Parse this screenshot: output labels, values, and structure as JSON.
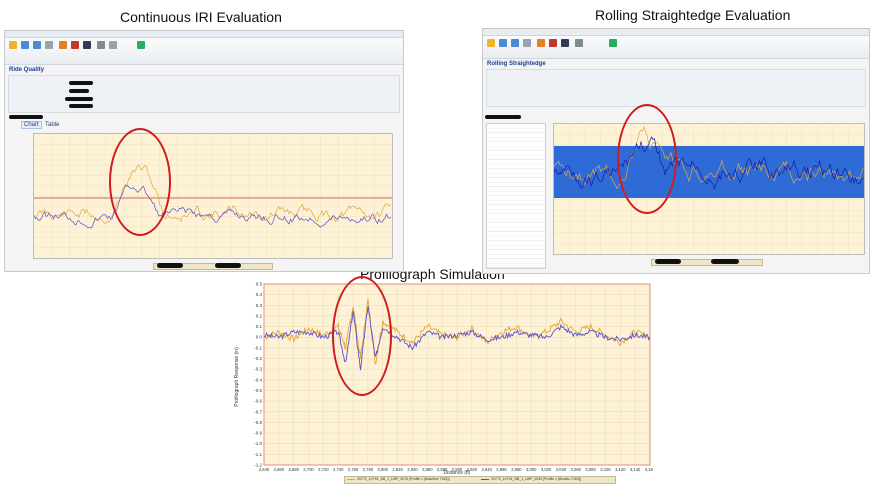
{
  "captions": {
    "iri": "Continuous IRI Evaluation",
    "rse": "Rolling Straightedge Evaluation",
    "profilograph": "Profilograph Simulation"
  },
  "iri_panel": {
    "section_title": "Ride Quality",
    "tabs": [
      "Chart",
      "Table"
    ]
  },
  "rse_panel": {
    "section_title": "Rolling Straightedge"
  },
  "profilograph": {
    "y_axis_label": "Profilograph Response (in)",
    "x_axis_label": "Distance (ft)",
    "legend": [
      {
        "name": "20772_10+51_NB_1_LWP_0070 [Profile 1 (Baseline 7163)]",
        "color": "#e0a83c"
      },
      {
        "name": "20772_10+51_NB_1_LWP_0042 [Profile 1 (Bcratio 7163)]",
        "color": "#5b4fcf"
      }
    ]
  },
  "colors": {
    "orange_series": "#e0a83c",
    "blue_series": "#5b4fcf",
    "highlight_ellipse": "#d01c1c",
    "plot_background": "#fdf1d6",
    "threshold_line": "#c0392b",
    "rse_band": "#2e6bd6"
  },
  "chart_data": [
    {
      "type": "line",
      "title": "Profilograph Simulation",
      "xlabel": "Distance (ft)",
      "ylabel": "Profilograph Response (in)",
      "xlim": [
        2640,
        3160
      ],
      "ylim": [
        -1.2,
        0.5
      ],
      "x_ticks": [
        "2,640",
        "2,660",
        "2,680",
        "2,700",
        "2,720",
        "2,740",
        "2,760",
        "2,780",
        "2,800",
        "2,820",
        "2,840",
        "2,860",
        "2,880",
        "2,900",
        "2,920",
        "2,940",
        "2,960",
        "2,980",
        "3,000",
        "3,020",
        "3,040",
        "3,060",
        "3,080",
        "3,100",
        "3,120",
        "3,140",
        "3,160"
      ],
      "y_ticks": [
        "0.5",
        "0.4",
        "0.3",
        "0.2",
        "0.1",
        "0.0",
        "-0.1",
        "-0.2",
        "-0.3",
        "-0.4",
        "-0.5",
        "-0.6",
        "-0.7",
        "-0.8",
        "-0.9",
        "-1.0",
        "-1.1",
        "-1.2"
      ],
      "series": [
        {
          "name": "20772_10+51_NB_1_LWP_0070 [Profile 1 (Baseline 7163)]",
          "x": [
            2640,
            2660,
            2680,
            2700,
            2720,
            2740,
            2750,
            2760,
            2770,
            2780,
            2790,
            2800,
            2820,
            2840,
            2860,
            2880,
            2900,
            2920,
            2940,
            2960,
            2980,
            3000,
            3020,
            3040,
            3060,
            3080,
            3100,
            3120,
            3140,
            3160
          ],
          "y": [
            0.0,
            0.05,
            -0.02,
            0.08,
            0.02,
            0.1,
            -0.1,
            0.3,
            -0.2,
            0.35,
            -0.25,
            0.15,
            0.05,
            -0.05,
            0.1,
            0.02,
            0.0,
            0.08,
            -0.05,
            0.05,
            0.1,
            0.0,
            0.05,
            0.15,
            0.05,
            0.1,
            0.02,
            -0.05,
            0.05,
            0.0
          ]
        },
        {
          "name": "20772_10+51_NB_1_LWP_0042 [Profile 1 (Bcratio 7163)]",
          "x": [
            2640,
            2660,
            2680,
            2700,
            2720,
            2740,
            2750,
            2760,
            2770,
            2780,
            2790,
            2800,
            2820,
            2840,
            2860,
            2880,
            2900,
            2920,
            2940,
            2960,
            2980,
            3000,
            3020,
            3040,
            3060,
            3080,
            3100,
            3120,
            3140,
            3160
          ],
          "y": [
            0.02,
            0.0,
            0.05,
            0.05,
            0.0,
            0.05,
            -0.25,
            0.25,
            -0.3,
            0.3,
            -0.2,
            0.1,
            0.0,
            -0.1,
            0.05,
            0.0,
            0.02,
            0.05,
            -0.02,
            0.0,
            0.05,
            0.02,
            0.0,
            0.1,
            0.02,
            0.05,
            0.0,
            -0.02,
            0.02,
            0.0
          ]
        }
      ]
    }
  ]
}
